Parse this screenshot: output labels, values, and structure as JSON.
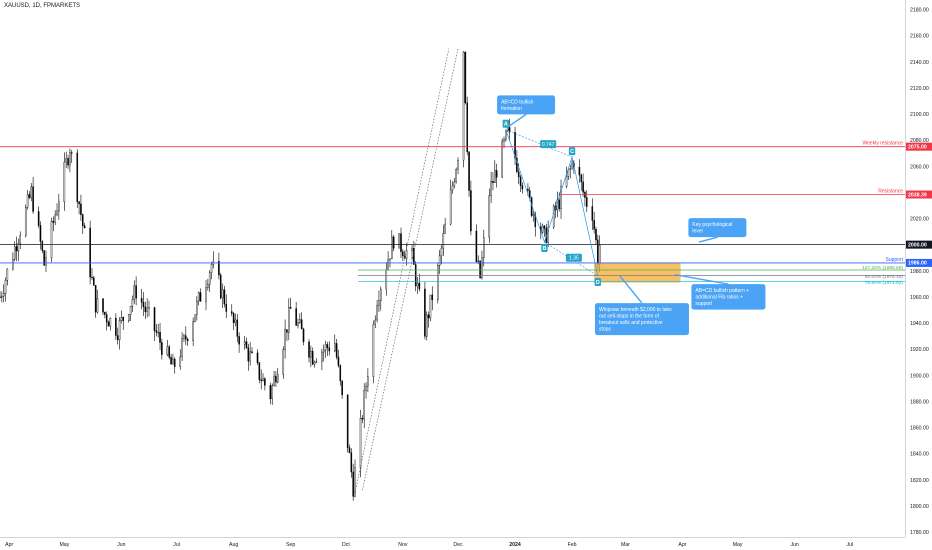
{
  "header": {
    "symbol_title": "XAUUSD, 1D, FPMARKETS"
  },
  "colors": {
    "bull": "#ffffff",
    "bear": "#000000",
    "wick": "#000000",
    "resistance": "#f23645",
    "support": "#2962ff",
    "neutral": "#131722",
    "fib_green": "#4caf50",
    "fib_gray": "#787b86",
    "fib_cyan": "#00bcd4",
    "zone": "#f7a932",
    "callout": "#4ba3f5",
    "abcd": "#2196f3",
    "pattern_label": "#26a6c4"
  },
  "chart_data": {
    "type": "candlestick",
    "y_axis": {
      "min": 1780,
      "max": 2185,
      "ticks": [
        1780,
        1800,
        1820,
        1840,
        1860,
        1880,
        1900,
        1920,
        1940,
        1960,
        1980,
        2000,
        2020,
        2040,
        2060,
        2080,
        2100,
        2120,
        2140,
        2160,
        2180
      ]
    },
    "x_axis": {
      "start": "2023-03-27",
      "end": "2024-07-31",
      "months": [
        {
          "label": "Apr",
          "date": "2023-04-01"
        },
        {
          "label": "May",
          "date": "2023-05-01"
        },
        {
          "label": "Jun",
          "date": "2023-06-01"
        },
        {
          "label": "Jul",
          "date": "2023-07-01"
        },
        {
          "label": "Aug",
          "date": "2023-08-01"
        },
        {
          "label": "Sep",
          "date": "2023-09-01"
        },
        {
          "label": "Oct",
          "date": "2023-10-01"
        },
        {
          "label": "Nov",
          "date": "2023-11-01"
        },
        {
          "label": "Dec",
          "date": "2023-12-01"
        },
        {
          "label": "2024",
          "date": "2024-01-01"
        },
        {
          "label": "Feb",
          "date": "2024-02-01"
        },
        {
          "label": "Mar",
          "date": "2024-03-01"
        },
        {
          "label": "Apr",
          "date": "2024-04-01"
        },
        {
          "label": "May",
          "date": "2024-05-01"
        },
        {
          "label": "Jun",
          "date": "2024-06-01"
        },
        {
          "label": "Jul",
          "date": "2024-07-01"
        }
      ]
    },
    "path": [
      [
        "2023-03-27",
        1960
      ],
      [
        "2023-04-13",
        2040
      ],
      [
        "2023-04-20",
        1985
      ],
      [
        "2023-05-04",
        2075
      ],
      [
        "2023-05-18",
        1955
      ],
      [
        "2023-05-30",
        1935
      ],
      [
        "2023-06-09",
        1965
      ],
      [
        "2023-06-29",
        1905
      ],
      [
        "2023-07-05",
        1925
      ],
      [
        "2023-07-20",
        1985
      ],
      [
        "2023-08-02",
        1935
      ],
      [
        "2023-08-21",
        1885
      ],
      [
        "2023-09-01",
        1950
      ],
      [
        "2023-09-13",
        1915
      ],
      [
        "2023-09-25",
        1925
      ],
      [
        "2023-10-05",
        1815
      ],
      [
        "2023-10-18",
        1960
      ],
      [
        "2023-10-27",
        2005
      ],
      [
        "2023-11-06",
        1990
      ],
      [
        "2023-11-13",
        1935
      ],
      [
        "2023-11-20",
        1980
      ],
      [
        "2023-12-01",
        2070
      ],
      [
        "2023-12-04",
        2150
      ],
      [
        "2023-12-08",
        2005
      ],
      [
        "2023-12-13",
        1975
      ],
      [
        "2023-12-18",
        2040
      ],
      [
        "2023-12-28",
        2085
      ],
      [
        "2024-01-08",
        2035
      ],
      [
        "2024-01-17",
        2005
      ],
      [
        "2024-01-24",
        2030
      ],
      [
        "2024-02-02",
        2065
      ],
      [
        "2024-02-08",
        2035
      ],
      [
        "2024-02-12",
        2025
      ],
      [
        "2024-02-15",
        1990
      ],
      [
        "2024-02-16",
        2000
      ]
    ],
    "levels": [
      {
        "name": "Weekly resistance",
        "value": 2075,
        "tag": "2075.00",
        "color": "#f23645"
      },
      {
        "name": "Resistance",
        "value": 2038.39,
        "tag": "2038.39",
        "color": "#f23645"
      },
      {
        "name": "",
        "value": 2000,
        "tag": "2000.00",
        "color": "#131722"
      },
      {
        "name": "Support",
        "value": 1986,
        "tag": "1986.00",
        "color": "#2962ff"
      }
    ],
    "fib_lines": [
      {
        "label": "127.20% (1980.58)",
        "value": 1980.58,
        "color": "#4caf50"
      },
      {
        "label": "50.00% (1976.30)",
        "value": 1976.3,
        "color": "#787b86"
      },
      {
        "label": "78.60% (1971.62)",
        "value": 1971.62,
        "color": "#00bcd4"
      }
    ],
    "zone": {
      "x0": "2024-02-13",
      "x1": "2024-03-31",
      "y0": 1971,
      "y1": 1986
    },
    "abcd": {
      "points": [
        {
          "label": "A",
          "date": "2023-12-27",
          "value": 2088
        },
        {
          "label": "B",
          "date": "2024-01-17",
          "value": 2002
        },
        {
          "label": "C",
          "date": "2024-02-01",
          "value": 2067
        },
        {
          "label": "D",
          "date": "2024-02-15",
          "value": 1976
        }
      ],
      "ratios": [
        {
          "label": "0.747",
          "date": "2024-01-19",
          "value": 2077
        },
        {
          "label": "1.35",
          "date": "2024-02-02",
          "value": 1990
        }
      ]
    },
    "ab_channel": [
      {
        "from": [
          "2023-10-06",
          1810
        ],
        "to": [
          "2023-11-26",
          2150
        ]
      },
      {
        "from": [
          "2023-10-10",
          1812
        ],
        "to": [
          "2023-12-01",
          2150
        ]
      }
    ],
    "callouts": [
      {
        "text": "AB=CD bullish formation",
        "date": "2024-01-07",
        "value": 2107,
        "tip_date": "2023-12-28",
        "tip_value": 2090
      },
      {
        "text": "Key psychological level",
        "date": "2024-04-20",
        "value": 2013,
        "tip_date": "2024-04-10",
        "tip_value": 2002
      },
      {
        "text": "Whipsaw beneath $2,000 to take out sell-stops in the form of breakout sells and protective stops",
        "date": "2024-03-10",
        "value": 1943,
        "tip_date": "2024-02-27",
        "tip_value": 1976
      },
      {
        "text": "AB=CD bullish pattern + additional Fib ratios + support",
        "date": "2024-04-26",
        "value": 1960,
        "tip_date": "2024-03-28",
        "tip_value": 1977
      }
    ]
  }
}
